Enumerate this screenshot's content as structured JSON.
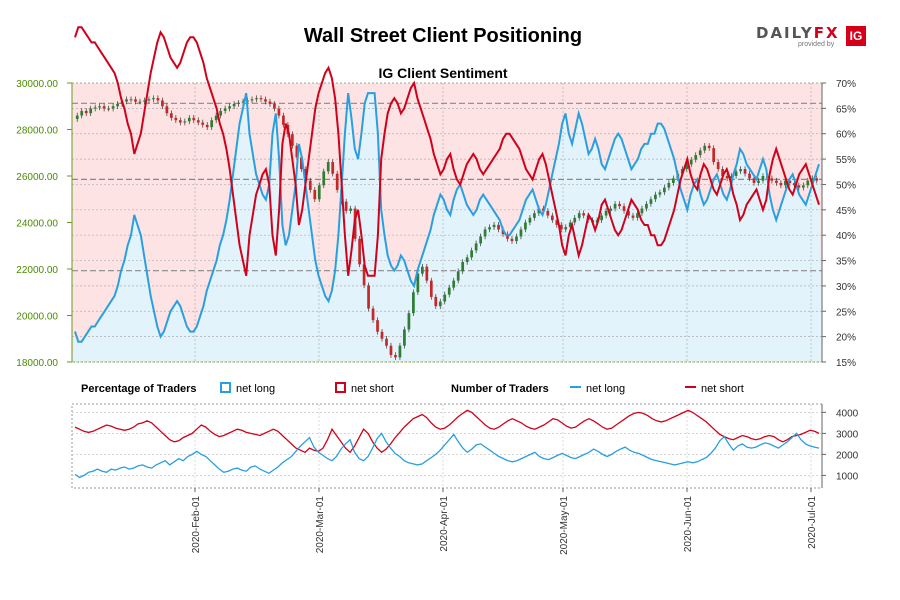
{
  "title": "Wall Street Client Positioning",
  "logo": {
    "brand_a": "DAILY",
    "brand_b": "FX",
    "sub": "provided by",
    "badge": "IG"
  },
  "colors": {
    "long": "#2a9fdf",
    "short": "#d0021b",
    "up": "#2e7d32",
    "down": "#c62828",
    "price_axis": "#4b8a00",
    "bg_short": "#fde3e3",
    "bg_long": "#e3f3fb"
  },
  "chart_data": [
    {
      "type": "candlestick",
      "title": "IG Client Sentiment",
      "price_axis": {
        "ticks": [
          "30000.00",
          "28000.00",
          "26000.00",
          "24000.00",
          "22000.00",
          "20000.00",
          "18000.00"
        ],
        "min": 18000,
        "max": 30000
      },
      "pct_axis": {
        "ticks": [
          "70%",
          "65%",
          "60%",
          "55%",
          "50%",
          "45%",
          "40%",
          "35%",
          "30%",
          "25%",
          "20%",
          "15%"
        ],
        "min": 15,
        "max": 70
      },
      "dates": [
        "2020-Feb-01",
        "2020-Mar-01",
        "2020-Apr-01",
        "2020-May-01",
        "2020-Jun-01",
        "2020-Jul-01"
      ],
      "reference_lines": [
        66.0,
        51.0,
        33.0
      ],
      "net_long_pct": [
        21,
        19,
        19,
        20,
        21,
        22,
        22,
        23,
        24,
        25,
        26,
        27,
        28,
        30,
        33,
        35,
        38,
        40,
        44,
        42,
        40,
        36,
        32,
        28,
        25,
        22,
        20,
        21,
        23,
        25,
        26,
        27,
        26,
        24,
        22,
        21,
        21,
        22,
        24,
        26,
        29,
        31,
        33,
        35,
        38,
        40,
        43,
        47,
        52,
        57,
        62,
        65,
        68,
        60,
        56,
        52,
        50,
        48,
        47,
        50,
        60,
        64,
        55,
        42,
        38,
        40,
        45,
        50,
        58,
        55,
        50,
        45,
        40,
        35,
        32,
        30,
        28,
        27,
        29,
        33,
        40,
        50,
        60,
        68,
        63,
        57,
        55,
        60,
        66,
        68,
        68,
        68,
        60,
        45,
        40,
        36,
        34,
        33,
        34,
        36,
        35,
        33,
        31,
        30,
        33,
        35,
        37,
        39,
        41,
        44,
        46,
        48,
        47,
        45,
        44,
        47,
        49,
        50,
        48,
        46,
        45,
        44,
        45,
        47,
        48,
        47,
        46,
        45,
        44,
        43,
        41,
        40,
        40,
        41,
        42,
        43,
        45,
        47,
        48,
        49,
        47,
        45,
        44,
        46,
        49,
        52,
        55,
        58,
        62,
        64,
        60,
        58,
        61,
        64,
        62,
        59,
        56,
        57,
        59,
        57,
        54,
        53,
        55,
        57,
        59,
        60,
        59,
        57,
        55,
        53,
        54,
        55,
        57,
        58,
        58,
        60,
        60,
        62,
        62,
        61,
        59,
        57,
        55,
        52,
        49,
        47,
        45,
        48,
        50,
        51,
        48,
        46,
        47,
        49,
        51,
        52,
        50,
        48,
        47,
        49,
        52,
        54,
        57,
        56,
        54,
        53,
        52,
        51,
        53,
        55,
        53,
        48,
        45,
        43,
        45,
        47,
        49,
        51,
        52,
        50,
        48,
        47,
        46,
        48,
        50,
        52,
        54
      ],
      "close": [
        28600,
        28800,
        28700,
        28900,
        28950,
        29000,
        28900,
        28900,
        29000,
        29100,
        29200,
        29300,
        29300,
        29200,
        29200,
        29250,
        29300,
        29350,
        29250,
        29000,
        28700,
        28500,
        28400,
        28300,
        28350,
        28500,
        28400,
        28300,
        28200,
        28100,
        28400,
        28600,
        28800,
        28900,
        29000,
        29100,
        29150,
        29200,
        29250,
        29300,
        29350,
        29300,
        29200,
        29100,
        28900,
        28600,
        28200,
        27800,
        27300,
        26800,
        26300,
        25800,
        25400,
        25000,
        25600,
        26200,
        26600,
        26100,
        25400,
        24900,
        24500,
        24600,
        23300,
        22200,
        21300,
        20300,
        19800,
        19300,
        19000,
        18700,
        18300,
        18200,
        18700,
        19400,
        20100,
        21000,
        21800,
        22100,
        21500,
        20800,
        20400,
        20600,
        20900,
        21200,
        21500,
        21900,
        22300,
        22500,
        22800,
        23100,
        23400,
        23700,
        23800,
        23900,
        23700,
        23500,
        23300,
        23200,
        23400,
        23700,
        24000,
        24200,
        24400,
        24600,
        24500,
        24300,
        24100,
        23900,
        23700,
        23800,
        24000,
        24200,
        24400,
        24300,
        24100,
        24000,
        24100,
        24300,
        24500,
        24600,
        24800,
        24700,
        24500,
        24300,
        24200,
        24400,
        24600,
        24800,
        25000,
        25200,
        25300,
        25500,
        25700,
        25900,
        26100,
        26300,
        26500,
        26700,
        26900,
        27100,
        27300,
        27200,
        26600,
        26300,
        26000,
        25900,
        26000,
        26200,
        26300,
        26100,
        25900,
        25700,
        25800,
        26000,
        25900,
        25800,
        25700,
        25600,
        25800,
        25700,
        25600,
        25500,
        25600,
        25800,
        25900,
        25800
      ],
      "legend_left": {
        "label": "Percentage of Traders",
        "items": [
          "net long",
          "net short"
        ]
      },
      "legend_right": {
        "label": "Number of Traders",
        "items": [
          "net long",
          "net short"
        ]
      }
    },
    {
      "type": "line",
      "count_axis": {
        "ticks": [
          "4000",
          "3000",
          "2000",
          "1000"
        ],
        "min": 400,
        "max": 4400
      },
      "net_long_count": [
        1050,
        900,
        1000,
        1150,
        1200,
        1300,
        1200,
        1150,
        1300,
        1250,
        1350,
        1400,
        1300,
        1350,
        1450,
        1500,
        1400,
        1350,
        1500,
        1600,
        1700,
        1500,
        1650,
        1800,
        1700,
        1900,
        2000,
        2150,
        2000,
        1900,
        1700,
        1500,
        1300,
        1150,
        1200,
        1300,
        1350,
        1250,
        1200,
        1400,
        1450,
        1300,
        1200,
        1100,
        1250,
        1400,
        1600,
        1750,
        1900,
        2150,
        2400,
        2600,
        2800,
        2350,
        2100,
        1950,
        1800,
        1700,
        1900,
        2250,
        2500,
        2700,
        2100,
        1800,
        1700,
        1900,
        2300,
        2750,
        3000,
        2600,
        2300,
        2050,
        1900,
        1700,
        1600,
        1550,
        1500,
        1550,
        1700,
        1850,
        2000,
        2200,
        2450,
        2700,
        2950,
        2600,
        2300,
        2100,
        2250,
        2450,
        2500,
        2350,
        2200,
        2050,
        1900,
        1800,
        1700,
        1650,
        1700,
        1800,
        1900,
        2000,
        2100,
        1900,
        1800,
        1750,
        1850,
        1950,
        2050,
        1950,
        1850,
        1800,
        1900,
        2000,
        2100,
        2250,
        2150,
        2000,
        1900,
        2000,
        2150,
        2250,
        2350,
        2200,
        2100,
        2050,
        1950,
        1850,
        1750,
        1700,
        1650,
        1600,
        1550,
        1500,
        1550,
        1600,
        1650,
        1600,
        1650,
        1750,
        1850,
        2050,
        2300,
        2650,
        2850,
        2500,
        2200,
        2400,
        2500,
        2350,
        2300,
        2350,
        2450,
        2550,
        2500,
        2400,
        2300,
        2450,
        2600,
        2800,
        3000,
        2700,
        2500,
        2400,
        2350,
        2300
      ],
      "net_short_count": [
        3300,
        3200,
        3100,
        3050,
        3100,
        3200,
        3300,
        3400,
        3350,
        3250,
        3200,
        3150,
        3200,
        3300,
        3450,
        3500,
        3600,
        3500,
        3300,
        3100,
        2900,
        2700,
        2600,
        2650,
        2800,
        2900,
        3000,
        3200,
        3400,
        3300,
        3100,
        2950,
        2850,
        2900,
        3000,
        3100,
        3200,
        3150,
        3050,
        3000,
        2950,
        2900,
        3000,
        3100,
        3200,
        3100,
        2900,
        2700,
        2500,
        2300,
        2200,
        2100,
        2300,
        2200,
        2150,
        2300,
        2700,
        3200,
        2900,
        2600,
        2300,
        2100,
        2400,
        2800,
        3200,
        3000,
        2600,
        2300,
        2100,
        2250,
        2500,
        2800,
        3050,
        3300,
        3500,
        3700,
        3800,
        3900,
        3750,
        3500,
        3300,
        3200,
        3250,
        3400,
        3600,
        3800,
        3950,
        4100,
        4000,
        3800,
        3600,
        3400,
        3250,
        3200,
        3300,
        3450,
        3600,
        3700,
        3600,
        3500,
        3350,
        3250,
        3200,
        3300,
        3400,
        3550,
        3700,
        3650,
        3500,
        3350,
        3250,
        3300,
        3450,
        3600,
        3700,
        3600,
        3450,
        3300,
        3200,
        3250,
        3400,
        3550,
        3700,
        3850,
        3950,
        4000,
        3950,
        3850,
        3700,
        3600,
        3550,
        3600,
        3700,
        3800,
        3900,
        4000,
        4100,
        4000,
        3850,
        3700,
        3550,
        3350,
        3150,
        2950,
        2850,
        2750,
        2700,
        2800,
        2900,
        2850,
        2750,
        2700,
        2750,
        2850,
        2900,
        2850,
        2700,
        2600,
        2700,
        2850,
        2900,
        2950,
        3050,
        3150,
        3100,
        3000
      ]
    }
  ]
}
